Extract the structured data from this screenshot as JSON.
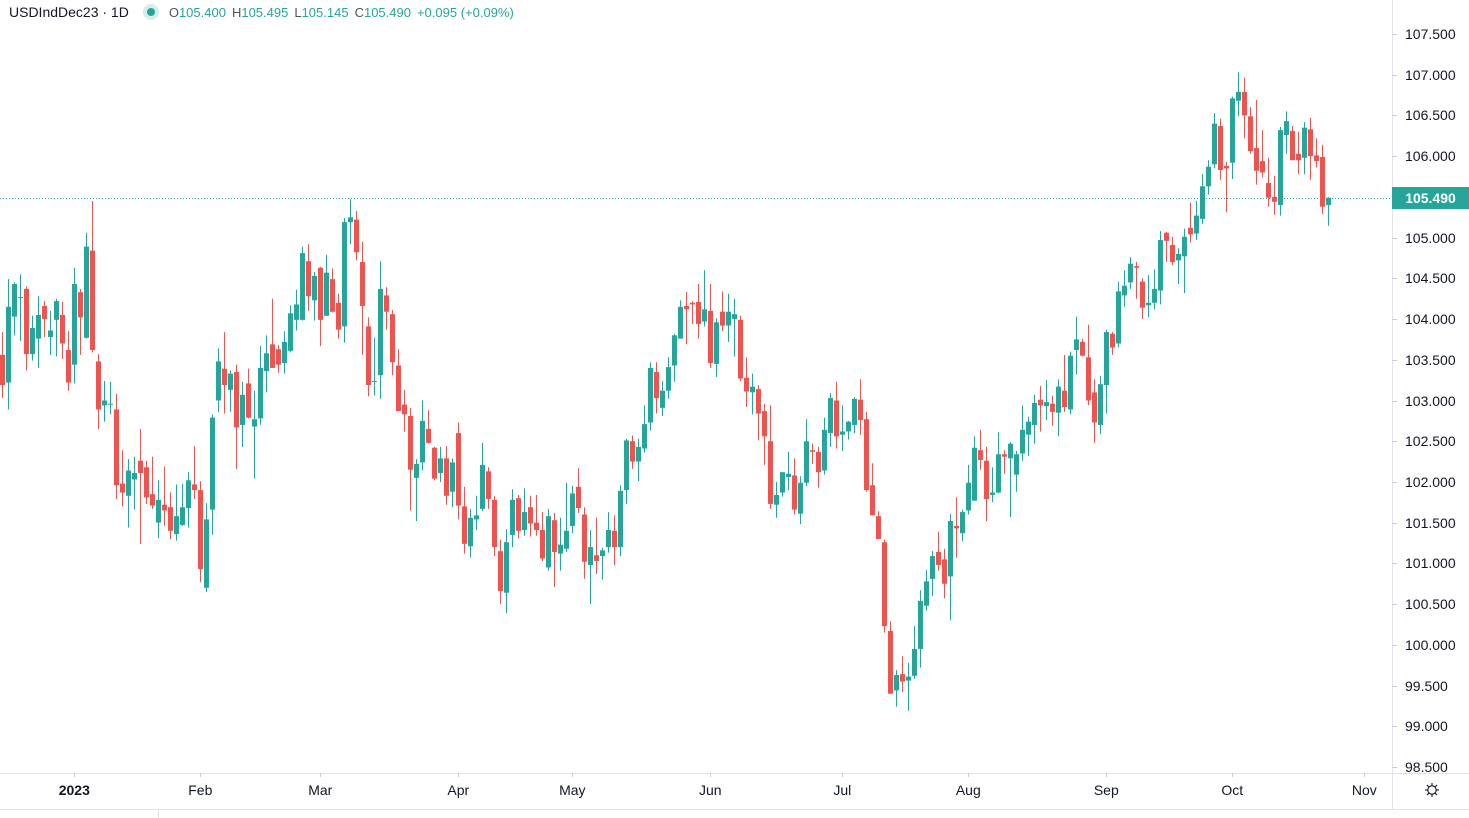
{
  "legend": {
    "symbol": "USDIndDec23 · 1D",
    "open_label": "O",
    "open": "105.400",
    "high_label": "H",
    "high": "105.495",
    "low_label": "L",
    "low": "105.145",
    "close_label": "C",
    "close": "105.490",
    "change": "+0.095 (+0.09%)"
  },
  "current_price_label": "105.490",
  "colors": {
    "up": "#26a69a",
    "down": "#ef5350",
    "price_line": "#26a69a"
  },
  "settings_icon": "gear-icon",
  "chart_data": {
    "type": "candlestick",
    "title": "",
    "y_axis_side": "right",
    "ylim": [
      98.5,
      107.5
    ],
    "y_ticks": [
      "107.500",
      "107.000",
      "106.500",
      "106.000",
      "105.000",
      "104.500",
      "104.000",
      "103.500",
      "103.000",
      "102.500",
      "102.000",
      "101.500",
      "101.000",
      "100.500",
      "100.000",
      "99.500",
      "99.000",
      "98.500"
    ],
    "x_ticks": [
      {
        "label": "2023",
        "bold": true
      },
      {
        "label": "Feb"
      },
      {
        "label": "Mar"
      },
      {
        "label": "Apr"
      },
      {
        "label": "May"
      },
      {
        "label": "Jun"
      },
      {
        "label": "Jul"
      },
      {
        "label": "Aug"
      },
      {
        "label": "Sep"
      },
      {
        "label": "Oct"
      },
      {
        "label": "Nov"
      }
    ],
    "last_price": 105.49,
    "ohlc_fields": [
      "open",
      "high",
      "low",
      "close"
    ],
    "candles": [
      [
        103.56,
        103.84,
        103.03,
        103.19
      ],
      [
        103.22,
        104.49,
        102.89,
        104.15
      ],
      [
        104.03,
        104.45,
        103.8,
        104.43
      ],
      [
        104.26,
        104.55,
        103.73,
        104.27
      ],
      [
        104.37,
        104.4,
        103.37,
        103.57
      ],
      [
        103.57,
        104.04,
        103.49,
        103.89
      ],
      [
        103.76,
        104.28,
        103.4,
        104.05
      ],
      [
        104.16,
        104.22,
        103.78,
        104.0
      ],
      [
        103.78,
        104.1,
        103.56,
        103.86
      ],
      [
        103.99,
        104.25,
        103.54,
        104.22
      ],
      [
        104.05,
        104.21,
        103.51,
        103.7
      ],
      [
        103.62,
        103.85,
        103.12,
        103.22
      ],
      [
        103.44,
        104.63,
        103.21,
        104.43
      ],
      [
        104.33,
        104.37,
        103.56,
        104.02
      ],
      [
        103.77,
        105.06,
        103.76,
        104.89
      ],
      [
        104.84,
        105.45,
        103.59,
        103.62
      ],
      [
        103.48,
        103.57,
        102.65,
        102.89
      ],
      [
        102.94,
        103.24,
        102.74,
        103.0
      ],
      [
        102.95,
        103.23,
        102.83,
        102.96
      ],
      [
        102.89,
        103.08,
        101.79,
        101.96
      ],
      [
        101.98,
        102.39,
        101.7,
        101.87
      ],
      [
        101.83,
        102.28,
        101.44,
        102.14
      ],
      [
        102.03,
        102.31,
        101.66,
        102.11
      ],
      [
        102.26,
        102.65,
        101.24,
        102.11
      ],
      [
        102.18,
        102.26,
        101.73,
        101.81
      ],
      [
        101.85,
        102.31,
        101.67,
        101.71
      ],
      [
        101.5,
        102.02,
        101.31,
        101.78
      ],
      [
        101.72,
        102.19,
        101.46,
        101.65
      ],
      [
        101.69,
        101.87,
        101.3,
        101.4
      ],
      [
        101.36,
        101.97,
        101.28,
        101.58
      ],
      [
        101.47,
        101.98,
        101.46,
        101.69
      ],
      [
        101.68,
        102.12,
        101.44,
        102.02
      ],
      [
        101.97,
        102.44,
        101.79,
        101.9
      ],
      [
        101.9,
        102.01,
        100.77,
        100.93
      ],
      [
        100.7,
        101.74,
        100.65,
        101.54
      ],
      [
        101.66,
        102.83,
        101.35,
        102.79
      ],
      [
        103.0,
        103.64,
        102.86,
        103.48
      ],
      [
        103.39,
        103.84,
        102.84,
        103.19
      ],
      [
        103.13,
        103.37,
        102.86,
        103.33
      ],
      [
        103.35,
        103.44,
        102.16,
        102.67
      ],
      [
        102.7,
        103.23,
        102.43,
        103.07
      ],
      [
        103.21,
        103.39,
        102.78,
        102.79
      ],
      [
        102.68,
        103.12,
        102.04,
        102.77
      ],
      [
        102.78,
        103.67,
        102.7,
        103.4
      ],
      [
        103.36,
        103.8,
        103.1,
        103.58
      ],
      [
        103.69,
        104.25,
        103.4,
        103.4
      ],
      [
        103.63,
        103.68,
        103.34,
        103.44
      ],
      [
        103.46,
        103.85,
        103.33,
        103.72
      ],
      [
        103.61,
        104.17,
        103.59,
        104.07
      ],
      [
        103.99,
        104.36,
        103.86,
        104.18
      ],
      [
        103.99,
        104.89,
        103.98,
        104.81
      ],
      [
        104.71,
        104.92,
        104.1,
        104.28
      ],
      [
        104.23,
        104.58,
        103.98,
        104.53
      ],
      [
        104.63,
        104.64,
        103.67,
        103.99
      ],
      [
        104.04,
        104.79,
        104.04,
        104.57
      ],
      [
        104.49,
        104.62,
        104.08,
        104.09
      ],
      [
        104.2,
        104.31,
        103.76,
        103.87
      ],
      [
        103.91,
        105.24,
        103.71,
        105.19
      ],
      [
        105.19,
        105.47,
        104.92,
        105.25
      ],
      [
        105.22,
        105.33,
        104.72,
        104.82
      ],
      [
        104.7,
        104.95,
        103.56,
        104.16
      ],
      [
        103.91,
        104.02,
        103.05,
        103.19
      ],
      [
        103.23,
        103.77,
        103.06,
        103.24
      ],
      [
        103.31,
        104.71,
        103.02,
        104.37
      ],
      [
        104.29,
        104.39,
        103.87,
        104.09
      ],
      [
        104.06,
        104.11,
        103.31,
        103.47
      ],
      [
        103.43,
        103.63,
        102.87,
        102.87
      ],
      [
        102.95,
        103.13,
        102.62,
        102.83
      ],
      [
        102.81,
        102.91,
        101.65,
        102.15
      ],
      [
        102.05,
        102.28,
        101.52,
        102.22
      ],
      [
        102.24,
        103.0,
        102.14,
        102.75
      ],
      [
        102.65,
        102.88,
        102.47,
        102.48
      ],
      [
        102.42,
        102.43,
        102.02,
        102.04
      ],
      [
        102.11,
        102.43,
        102.0,
        102.29
      ],
      [
        102.29,
        102.44,
        101.72,
        101.83
      ],
      [
        101.88,
        102.29,
        101.69,
        102.24
      ],
      [
        102.6,
        102.73,
        101.54,
        101.71
      ],
      [
        101.7,
        101.94,
        101.12,
        101.24
      ],
      [
        101.21,
        101.67,
        101.07,
        101.56
      ],
      [
        101.54,
        101.83,
        101.41,
        101.59
      ],
      [
        101.67,
        102.48,
        101.64,
        102.21
      ],
      [
        102.13,
        102.18,
        101.67,
        101.79
      ],
      [
        101.78,
        101.83,
        101.09,
        101.2
      ],
      [
        101.15,
        101.29,
        100.5,
        100.66
      ],
      [
        100.64,
        101.42,
        100.39,
        101.26
      ],
      [
        101.35,
        101.91,
        101.2,
        101.78
      ],
      [
        101.8,
        101.84,
        101.31,
        101.4
      ],
      [
        101.41,
        101.92,
        101.34,
        101.63
      ],
      [
        101.69,
        101.83,
        101.33,
        101.49
      ],
      [
        101.5,
        101.84,
        101.34,
        101.41
      ],
      [
        101.41,
        101.63,
        101.03,
        101.06
      ],
      [
        100.95,
        101.67,
        100.91,
        101.58
      ],
      [
        101.53,
        101.62,
        100.71,
        101.14
      ],
      [
        101.12,
        101.56,
        100.91,
        101.23
      ],
      [
        101.18,
        101.99,
        101.14,
        101.4
      ],
      [
        101.46,
        101.95,
        101.37,
        101.86
      ],
      [
        101.94,
        102.17,
        101.62,
        101.68
      ],
      [
        101.6,
        101.69,
        100.81,
        101.02
      ],
      [
        100.98,
        101.41,
        100.5,
        101.2
      ],
      [
        101.1,
        101.56,
        100.87,
        101.03
      ],
      [
        101.09,
        101.19,
        100.8,
        101.16
      ],
      [
        101.2,
        101.63,
        101.13,
        101.41
      ],
      [
        101.4,
        101.59,
        100.98,
        101.2
      ],
      [
        101.2,
        101.96,
        101.09,
        101.89
      ],
      [
        101.9,
        102.53,
        101.73,
        102.51
      ],
      [
        102.5,
        102.57,
        102.16,
        102.25
      ],
      [
        102.25,
        102.53,
        102.01,
        102.43
      ],
      [
        102.41,
        102.94,
        102.36,
        102.71
      ],
      [
        102.73,
        103.47,
        102.63,
        103.4
      ],
      [
        103.35,
        103.47,
        102.84,
        103.03
      ],
      [
        102.91,
        103.24,
        102.81,
        103.12
      ],
      [
        103.12,
        103.53,
        103.02,
        103.41
      ],
      [
        103.43,
        103.82,
        103.23,
        103.8
      ],
      [
        103.76,
        104.23,
        103.76,
        104.15
      ],
      [
        104.16,
        104.33,
        103.69,
        104.12
      ],
      [
        104.2,
        104.22,
        103.94,
        104.18
      ],
      [
        104.21,
        104.43,
        103.76,
        103.94
      ],
      [
        103.97,
        104.6,
        103.91,
        104.12
      ],
      [
        104.1,
        104.43,
        103.4,
        103.46
      ],
      [
        103.45,
        104.01,
        103.29,
        103.96
      ],
      [
        104.09,
        104.34,
        103.85,
        103.92
      ],
      [
        103.92,
        104.31,
        103.72,
        104.09
      ],
      [
        104.0,
        104.25,
        103.54,
        104.06
      ],
      [
        103.99,
        104.04,
        103.24,
        103.27
      ],
      [
        103.28,
        103.53,
        102.92,
        103.11
      ],
      [
        103.1,
        103.33,
        102.83,
        103.17
      ],
      [
        103.14,
        103.19,
        102.51,
        102.84
      ],
      [
        102.87,
        102.96,
        102.21,
        102.56
      ],
      [
        102.5,
        102.94,
        101.67,
        101.73
      ],
      [
        101.72,
        102.0,
        101.56,
        101.84
      ],
      [
        101.87,
        102.12,
        101.82,
        102.12
      ],
      [
        102.06,
        102.37,
        101.9,
        102.1
      ],
      [
        102.08,
        102.29,
        101.6,
        101.66
      ],
      [
        101.61,
        102.07,
        101.48,
        101.99
      ],
      [
        101.99,
        102.77,
        101.95,
        102.5
      ],
      [
        102.39,
        102.47,
        102.22,
        102.37
      ],
      [
        102.37,
        102.43,
        101.93,
        102.12
      ],
      [
        102.14,
        102.79,
        102.09,
        102.64
      ],
      [
        102.6,
        103.09,
        102.43,
        103.03
      ],
      [
        103.0,
        103.23,
        102.41,
        102.56
      ],
      [
        102.58,
        102.94,
        102.38,
        102.62
      ],
      [
        102.62,
        102.75,
        102.52,
        102.74
      ],
      [
        102.7,
        103.04,
        102.6,
        103.02
      ],
      [
        103.01,
        103.26,
        102.58,
        102.76
      ],
      [
        102.77,
        102.86,
        101.88,
        101.9
      ],
      [
        101.96,
        102.23,
        101.59,
        101.59
      ],
      [
        101.58,
        101.64,
        101.3,
        101.3
      ],
      [
        101.26,
        101.29,
        100.15,
        100.23
      ],
      [
        100.17,
        100.29,
        99.4,
        99.4
      ],
      [
        99.44,
        99.69,
        99.24,
        99.63
      ],
      [
        99.64,
        99.86,
        99.42,
        99.55
      ],
      [
        99.56,
        99.78,
        99.19,
        99.61
      ],
      [
        99.62,
        100.23,
        99.58,
        99.95
      ],
      [
        99.95,
        100.67,
        99.72,
        100.54
      ],
      [
        100.48,
        100.92,
        100.42,
        100.78
      ],
      [
        100.81,
        101.15,
        100.6,
        101.09
      ],
      [
        101.14,
        101.39,
        100.91,
        100.98
      ],
      [
        101.05,
        101.18,
        100.57,
        100.75
      ],
      [
        100.84,
        101.61,
        100.3,
        101.52
      ],
      [
        101.46,
        101.81,
        101.07,
        101.43
      ],
      [
        101.37,
        101.66,
        101.27,
        101.63
      ],
      [
        101.65,
        102.21,
        101.6,
        101.99
      ],
      [
        101.77,
        102.56,
        101.77,
        102.42
      ],
      [
        102.39,
        102.64,
        102.15,
        102.27
      ],
      [
        102.26,
        102.43,
        101.52,
        101.79
      ],
      [
        101.84,
        102.18,
        101.75,
        101.87
      ],
      [
        101.87,
        102.61,
        101.86,
        102.34
      ],
      [
        102.34,
        102.39,
        102.1,
        102.31
      ],
      [
        102.29,
        102.49,
        101.57,
        102.47
      ],
      [
        102.09,
        102.38,
        101.88,
        102.34
      ],
      [
        102.35,
        102.94,
        102.26,
        102.64
      ],
      [
        102.58,
        102.8,
        102.32,
        102.74
      ],
      [
        102.7,
        103.07,
        102.47,
        102.97
      ],
      [
        103.01,
        103.18,
        102.62,
        102.94
      ],
      [
        102.93,
        103.25,
        102.76,
        102.98
      ],
      [
        102.96,
        103.06,
        102.69,
        102.86
      ],
      [
        102.85,
        103.26,
        102.56,
        103.17
      ],
      [
        103.12,
        103.56,
        102.86,
        102.92
      ],
      [
        102.89,
        103.6,
        102.83,
        103.55
      ],
      [
        103.62,
        104.03,
        103.32,
        103.75
      ],
      [
        103.72,
        103.76,
        103.54,
        103.55
      ],
      [
        103.53,
        103.93,
        102.94,
        103.0
      ],
      [
        103.1,
        103.26,
        102.48,
        102.73
      ],
      [
        102.7,
        103.3,
        102.59,
        103.2
      ],
      [
        103.19,
        103.87,
        102.84,
        103.84
      ],
      [
        103.82,
        103.84,
        103.56,
        103.65
      ],
      [
        103.7,
        104.46,
        103.65,
        104.34
      ],
      [
        104.29,
        104.6,
        104.15,
        104.41
      ],
      [
        104.45,
        104.76,
        104.37,
        104.68
      ],
      [
        104.65,
        104.7,
        104.25,
        104.63
      ],
      [
        104.46,
        104.5,
        104.0,
        104.14
      ],
      [
        104.17,
        104.54,
        104.02,
        104.2
      ],
      [
        104.2,
        104.61,
        104.12,
        104.37
      ],
      [
        104.35,
        105.08,
        104.18,
        104.97
      ],
      [
        105.06,
        105.07,
        104.7,
        104.96
      ],
      [
        104.91,
        105.01,
        104.66,
        104.7
      ],
      [
        104.72,
        104.87,
        104.43,
        104.8
      ],
      [
        104.77,
        105.11,
        104.32,
        105.01
      ],
      [
        105.12,
        105.43,
        104.94,
        105.04
      ],
      [
        105.05,
        105.45,
        104.97,
        105.27
      ],
      [
        105.23,
        105.78,
        105.17,
        105.63
      ],
      [
        105.63,
        105.95,
        105.53,
        105.87
      ],
      [
        105.9,
        106.53,
        105.85,
        106.4
      ],
      [
        106.37,
        106.46,
        105.71,
        105.83
      ],
      [
        105.88,
        105.93,
        105.31,
        105.85
      ],
      [
        105.92,
        106.73,
        105.72,
        106.71
      ],
      [
        106.68,
        107.03,
        106.49,
        106.79
      ],
      [
        106.79,
        106.96,
        106.22,
        106.5
      ],
      [
        106.49,
        106.6,
        106.03,
        106.06
      ],
      [
        106.1,
        106.69,
        105.65,
        105.82
      ],
      [
        105.94,
        106.32,
        105.74,
        105.8
      ],
      [
        105.67,
        105.98,
        105.38,
        105.49
      ],
      [
        105.5,
        105.76,
        105.28,
        105.44
      ],
      [
        105.4,
        106.36,
        105.27,
        106.32
      ],
      [
        106.26,
        106.55,
        106.03,
        106.43
      ],
      [
        106.31,
        106.37,
        105.95,
        105.95
      ],
      [
        106.03,
        106.3,
        105.78,
        105.95
      ],
      [
        105.98,
        106.42,
        105.78,
        106.35
      ],
      [
        106.33,
        106.47,
        105.71,
        106.0
      ],
      [
        106.01,
        106.22,
        105.86,
        105.94
      ],
      [
        105.99,
        106.14,
        105.29,
        105.38
      ],
      [
        105.4,
        105.495,
        105.145,
        105.49
      ]
    ]
  }
}
